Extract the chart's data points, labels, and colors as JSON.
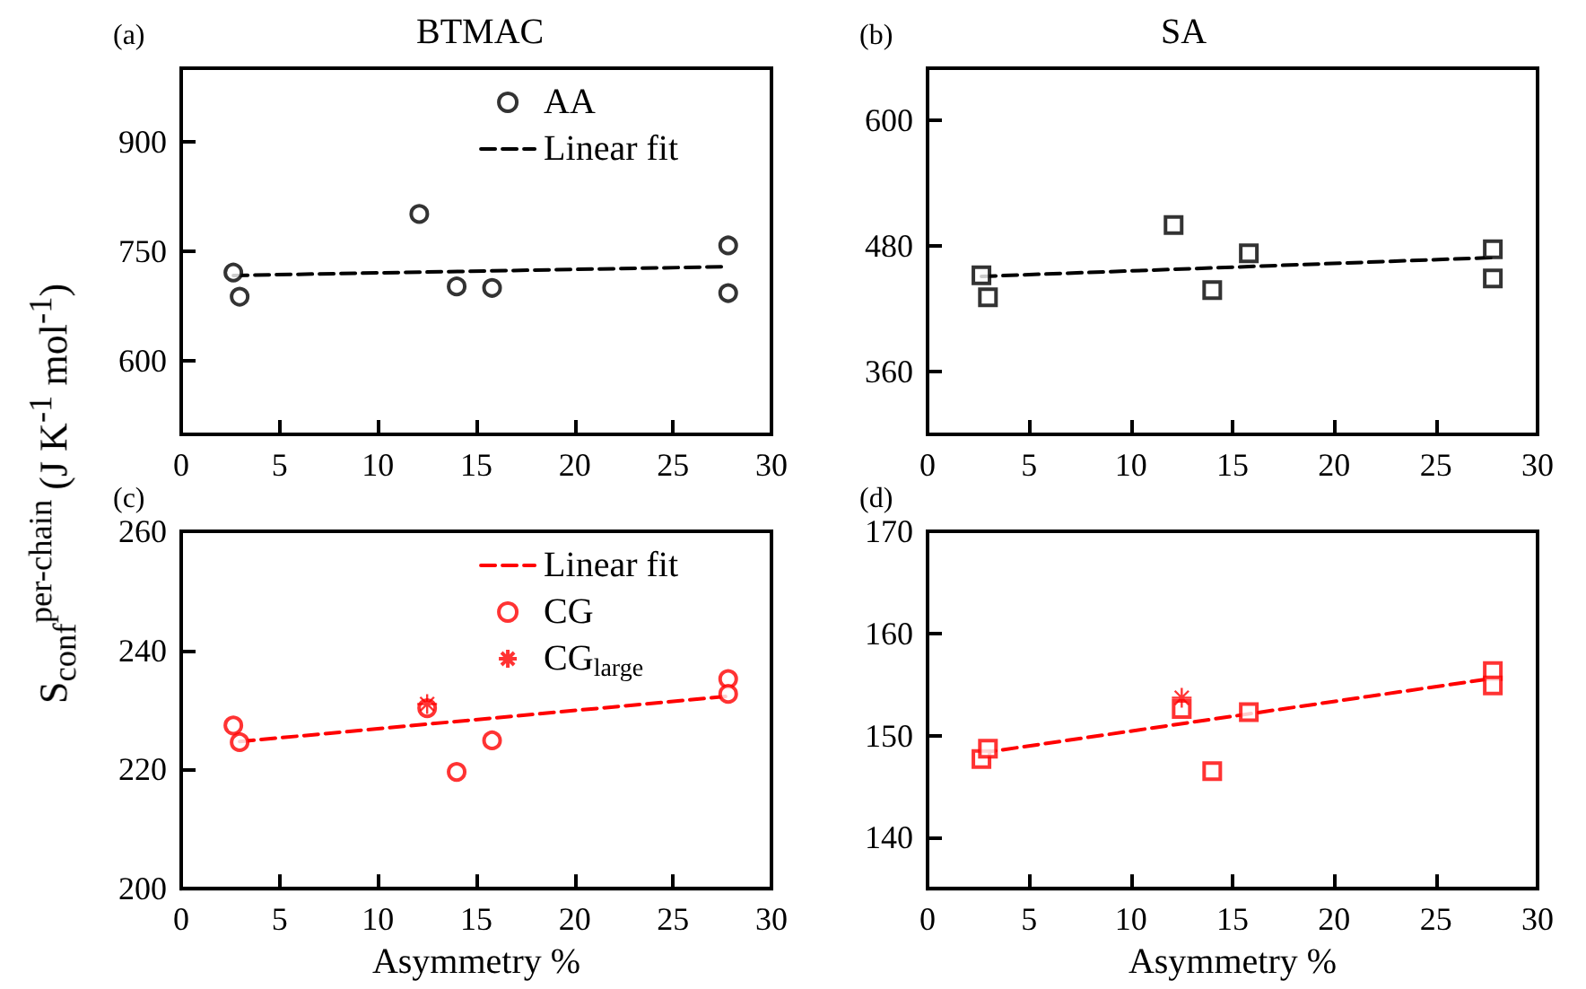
{
  "chart_data": [
    {
      "type": "scatter",
      "title": "BTMAC",
      "annotations": [
        "(a)"
      ],
      "ylabel": "S$_{conf}$$^{per-chain}$ (J K$^{-1}$ mol$^{-1}$)",
      "xlim": [
        0,
        30
      ],
      "xticks": [
        0,
        5,
        10,
        15,
        20,
        25,
        30
      ],
      "ylim": [
        500,
        1000
      ],
      "yticks": [
        600,
        750,
        900
      ],
      "grid": false,
      "legend": "top right",
      "series": [
        {
          "name": "AA",
          "marker": "circle",
          "color": "#000000",
          "x": [
            2.65,
            2.97,
            12.1,
            14.0,
            15.8,
            27.8,
            27.8
          ],
          "values": [
            721,
            688,
            801,
            702,
            700,
            758,
            693
          ]
        },
        {
          "name": "Linear fit",
          "type": "line",
          "marker": "none",
          "line_style": "dashed",
          "color": "#000000",
          "x": [
            2.65,
            27.8
          ],
          "values": [
            717,
            729
          ]
        }
      ]
    },
    {
      "type": "scatter",
      "title": "SA",
      "annotations": [
        "(b)"
      ],
      "xlim": [
        0,
        30
      ],
      "xticks": [
        0,
        5,
        10,
        15,
        20,
        25,
        30
      ],
      "ylim": [
        300,
        650
      ],
      "yticks": [
        360,
        480,
        600
      ],
      "grid": false,
      "series": [
        {
          "marker": "square",
          "color": "#000000",
          "x": [
            2.65,
            2.97,
            12.1,
            14.0,
            15.8,
            27.8,
            27.8
          ],
          "values": [
            452,
            431,
            500,
            438,
            473,
            477,
            449
          ]
        },
        {
          "type": "line",
          "marker": "none",
          "line_style": "dashed",
          "color": "#000000",
          "x": [
            2.65,
            27.8
          ],
          "values": [
            451,
            469
          ]
        }
      ]
    },
    {
      "type": "scatter",
      "annotations": [
        "(c)"
      ],
      "xlabel": "Asymmetry %",
      "xlim": [
        0,
        30
      ],
      "xticks": [
        0,
        5,
        10,
        15,
        20,
        25,
        30
      ],
      "ylim": [
        200,
        260
      ],
      "yticks": [
        200,
        220,
        240,
        260
      ],
      "grid": false,
      "legend": "top right",
      "series": [
        {
          "name": "Linear fit",
          "type": "line",
          "marker": "none",
          "line_style": "dashed",
          "color": "#ff0000",
          "x": [
            2.97,
            27.8
          ],
          "values": [
            224.7,
            232.3
          ]
        },
        {
          "name": "CG",
          "marker": "circle",
          "color": "#ff0000",
          "x": [
            2.65,
            2.97,
            12.5,
            14.0,
            15.8,
            27.8,
            27.8
          ],
          "values": [
            227.4,
            224.6,
            230.3,
            219.6,
            224.9,
            235.2,
            232.7
          ]
        },
        {
          "name": "CG$_{large}$",
          "marker": "cross",
          "color": "#ff0000",
          "x": [
            12.5
          ],
          "values": [
            231.0
          ]
        }
      ]
    },
    {
      "type": "scatter",
      "annotations": [
        "(d)"
      ],
      "xlabel": "Asymmetry %",
      "xlim": [
        0,
        30
      ],
      "xticks": [
        0,
        5,
        10,
        15,
        20,
        25,
        30
      ],
      "ylim": [
        135,
        170
      ],
      "yticks": [
        140,
        150,
        160,
        170
      ],
      "grid": false,
      "series": [
        {
          "type": "line",
          "marker": "none",
          "line_style": "dashed",
          "color": "#ff0000",
          "x": [
            2.65,
            27.8
          ],
          "values": [
            148.3,
            155.6
          ]
        },
        {
          "marker": "square",
          "color": "#ff0000",
          "x": [
            2.65,
            2.97,
            12.5,
            14.0,
            15.8,
            27.8,
            27.8
          ],
          "values": [
            147.7,
            148.7,
            152.6,
            146.5,
            152.3,
            156.3,
            154.9
          ]
        },
        {
          "marker": "cross",
          "color": "#ff0000",
          "x": [
            12.5
          ],
          "values": [
            153.7
          ]
        }
      ]
    }
  ]
}
